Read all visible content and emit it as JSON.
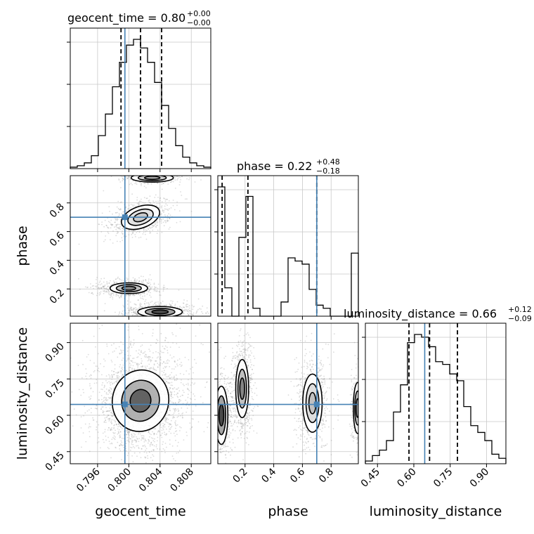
{
  "chart_data": {
    "type": "corner",
    "parameters": [
      "geocent_time",
      "phase",
      "luminosity_distance"
    ],
    "titles": {
      "geocent_time": {
        "name": "geocent_time",
        "value": "0.80",
        "plus": "+0.00",
        "minus": "−0.00"
      },
      "phase": {
        "name": "phase",
        "value": "0.22",
        "plus": "+0.48",
        "minus": "−0.18"
      },
      "luminosity_distance": {
        "name": "luminosity_distance",
        "value": "0.66",
        "plus": "+0.12",
        "minus": "−0.09"
      }
    },
    "axes": {
      "geocent_time": {
        "range": [
          0.7925,
          0.8105
        ],
        "ticks": [
          0.796,
          0.8,
          0.804,
          0.808
        ],
        "tick_labels": [
          "0.796",
          "0.800",
          "0.804",
          "0.808"
        ]
      },
      "phase": {
        "range": [
          0.01,
          0.99
        ],
        "ticks": [
          0.2,
          0.4,
          0.6,
          0.8
        ],
        "tick_labels": [
          "0.2",
          "0.4",
          "0.6",
          "0.8"
        ]
      },
      "luminosity_distance": {
        "range": [
          0.4,
          0.98
        ],
        "ticks": [
          0.45,
          0.6,
          0.75,
          0.9
        ],
        "tick_labels": [
          "0.45",
          "0.60",
          "0.75",
          "0.90"
        ]
      }
    },
    "truths": {
      "geocent_time": 0.7995,
      "phase": 0.7,
      "luminosity_distance": 0.645
    },
    "quantiles": {
      "geocent_time": [
        0.799,
        0.8015,
        0.8042
      ],
      "phase": [
        0.04,
        0.22,
        0.7
      ],
      "luminosity_distance": [
        0.58,
        0.665,
        0.78
      ]
    },
    "histograms": {
      "geocent_time": {
        "edges": [
          0.7925,
          0.7934,
          0.7943,
          0.7952,
          0.7961,
          0.797,
          0.7979,
          0.7988,
          0.7997,
          0.8006,
          0.8015,
          0.8024,
          0.8033,
          0.8042,
          0.8051,
          0.806,
          0.8069,
          0.8078,
          0.8087,
          0.8096,
          0.8105
        ],
        "counts": [
          1,
          2,
          4,
          9,
          23,
          38,
          57,
          74,
          86,
          90,
          84,
          74,
          60,
          44,
          28,
          16,
          8,
          4,
          2,
          1
        ]
      },
      "phase": {
        "edges": [
          0.01,
          0.059,
          0.108,
          0.157,
          0.206,
          0.255,
          0.304,
          0.353,
          0.402,
          0.451,
          0.5,
          0.549,
          0.598,
          0.647,
          0.696,
          0.745,
          0.794,
          0.843,
          0.892,
          0.941,
          0.99
        ],
        "counts": [
          82,
          18,
          0,
          50,
          76,
          5,
          0,
          0,
          0,
          9,
          37,
          35,
          33,
          17,
          7,
          5,
          0,
          0,
          0,
          40
        ]
      },
      "luminosity_distance": {
        "edges": [
          0.4,
          0.429,
          0.458,
          0.487,
          0.516,
          0.545,
          0.574,
          0.603,
          0.632,
          0.661,
          0.69,
          0.719,
          0.748,
          0.777,
          0.806,
          0.835,
          0.864,
          0.893,
          0.922,
          0.951,
          0.98
        ],
        "counts": [
          2,
          6,
          10,
          17,
          38,
          58,
          89,
          95,
          93,
          86,
          75,
          73,
          66,
          61,
          42,
          28,
          23,
          17,
          7,
          4
        ]
      }
    },
    "grid": true
  }
}
